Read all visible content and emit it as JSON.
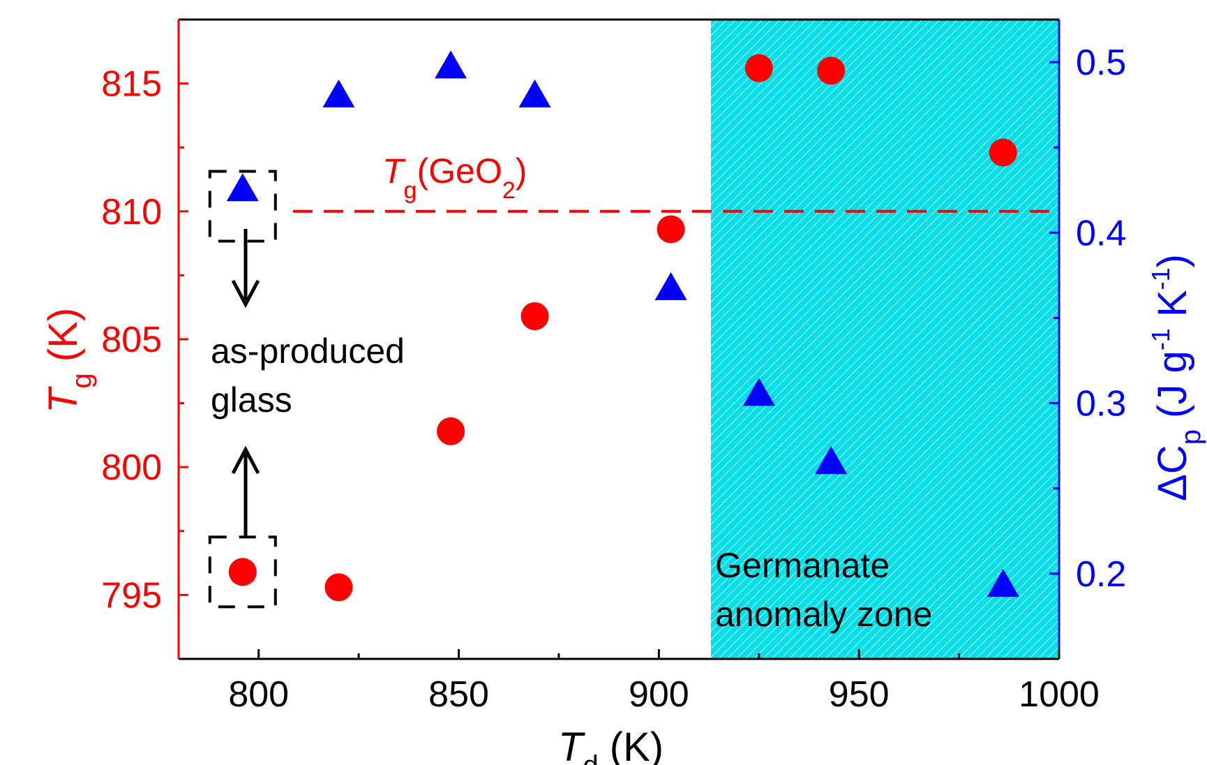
{
  "chart_data": {
    "type": "scatter",
    "x_axis": {
      "label_main": "T",
      "label_sub": "d",
      "label_unit": " (K)",
      "range": [
        780,
        1000
      ],
      "ticks": [
        "800",
        "850",
        "900",
        "950",
        "1000"
      ],
      "tick_values": [
        800,
        850,
        900,
        950,
        1000
      ]
    },
    "y_left": {
      "label_main": "T",
      "label_sub": "g",
      "label_unit": " (K)",
      "range": [
        792.5,
        817.5
      ],
      "ticks": [
        "795",
        "800",
        "805",
        "810",
        "815"
      ],
      "tick_values": [
        795,
        800,
        805,
        810,
        815
      ],
      "color": "#ff0000"
    },
    "y_right": {
      "label_pre": "ΔC",
      "label_sub": "p",
      "label_mid": " (J g",
      "label_sup1": "-1",
      "label_mid2": " K",
      "label_sup2": "-1",
      "label_end": ")",
      "range": [
        0.15,
        0.525
      ],
      "ticks": [
        "0.2",
        "0.3",
        "0.4",
        "0.5"
      ],
      "tick_values": [
        0.2,
        0.3,
        0.4,
        0.5
      ],
      "color": "#0000ff"
    },
    "series": [
      {
        "axis": "left",
        "marker": "circle",
        "color": "#ff0000",
        "points": [
          [
            796,
            795.9
          ],
          [
            820,
            795.3
          ],
          [
            848,
            801.4
          ],
          [
            869,
            805.9
          ],
          [
            903,
            809.3
          ],
          [
            925,
            815.6
          ],
          [
            943,
            815.5
          ],
          [
            986,
            812.3
          ]
        ]
      },
      {
        "axis": "right",
        "marker": "triangle",
        "color": "#0000ff",
        "points": [
          [
            796,
            0.425
          ],
          [
            820,
            0.48
          ],
          [
            848,
            0.497
          ],
          [
            869,
            0.48
          ],
          [
            903,
            0.367
          ],
          [
            925,
            0.305
          ],
          [
            943,
            0.265
          ],
          [
            986,
            0.193
          ]
        ]
      }
    ],
    "reference_line": {
      "y": 810,
      "axis": "left",
      "color": "#ff0000",
      "style": "dashed",
      "label_main": "T",
      "label_sub": "g",
      "label_rest_a": "(GeO",
      "label_rest_sub": "2",
      "label_rest_b": ")"
    },
    "shaded_region": {
      "x_start": 913,
      "x_end": 1000,
      "color": "#00e5ee",
      "label_line1": "Germanate",
      "label_line2": "anomaly zone"
    },
    "annotation": {
      "line1": "as-produced",
      "line2": "glass"
    },
    "highlight_boxes": [
      {
        "x": 796,
        "y": 810.2
      },
      {
        "x": 796,
        "y": 795.9
      }
    ]
  }
}
